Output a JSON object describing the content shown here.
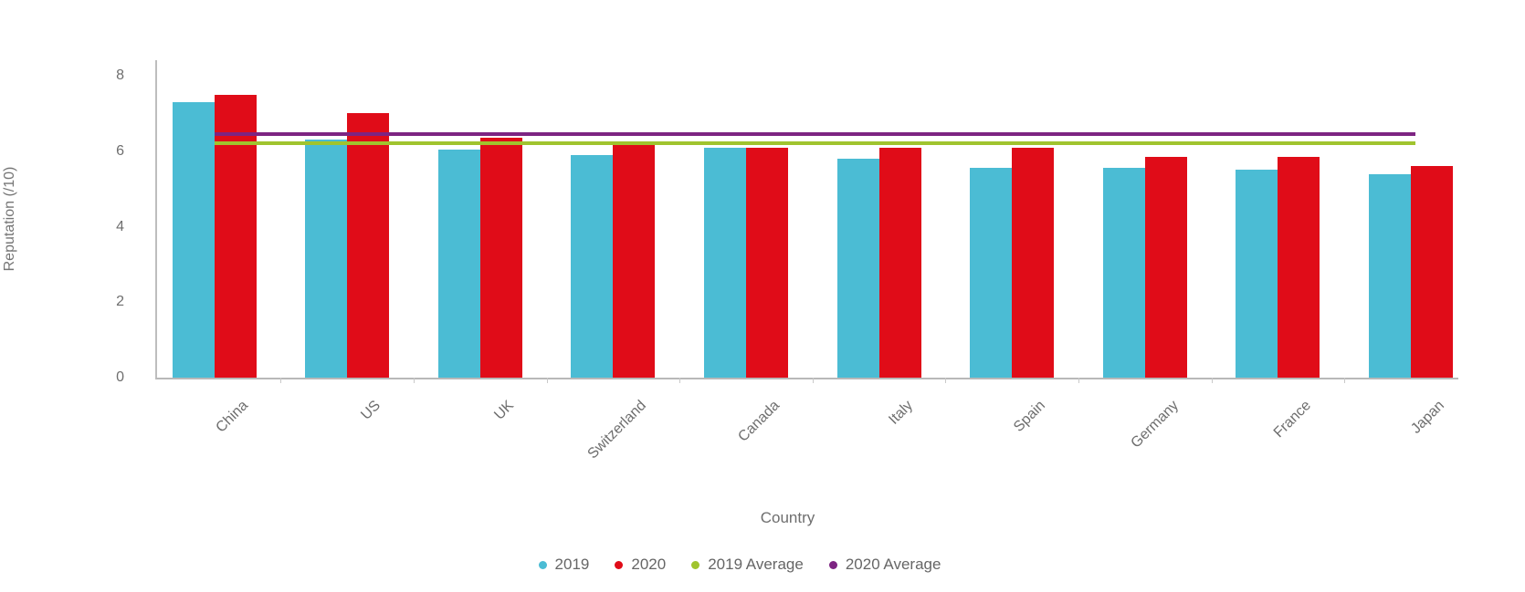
{
  "page": {
    "background": "#ffffff"
  },
  "chart_data": {
    "type": "bar",
    "title": "",
    "xlabel": "Country",
    "ylabel": "Reputation (/10)",
    "ylim": [
      0,
      8
    ],
    "yticks": [
      0,
      2,
      4,
      6,
      8
    ],
    "grid": false,
    "legend_position": "bottom",
    "categories": [
      "China",
      "US",
      "UK",
      "Switzerland",
      "Canada",
      "Italy",
      "Spain",
      "Germany",
      "France",
      "Japan"
    ],
    "series": [
      {
        "name": "2019",
        "type": "bar",
        "color": "#4bbcd4",
        "values": [
          7.3,
          6.3,
          6.05,
          5.9,
          6.1,
          5.8,
          5.55,
          5.55,
          5.5,
          5.4
        ]
      },
      {
        "name": "2020",
        "type": "bar",
        "color": "#e00c18",
        "values": [
          7.5,
          7.0,
          6.35,
          6.25,
          6.1,
          6.1,
          6.1,
          5.85,
          5.85,
          5.6
        ]
      },
      {
        "name": "2019 Average",
        "type": "line",
        "color": "#a0c42e",
        "value": 6.2
      },
      {
        "name": "2020 Average",
        "type": "line",
        "color": "#7d2482",
        "value": 6.45
      }
    ],
    "axis_color": "#bdbdbd",
    "tick_label_color": "#6e6e6e",
    "legend_text_color": "#666666"
  }
}
